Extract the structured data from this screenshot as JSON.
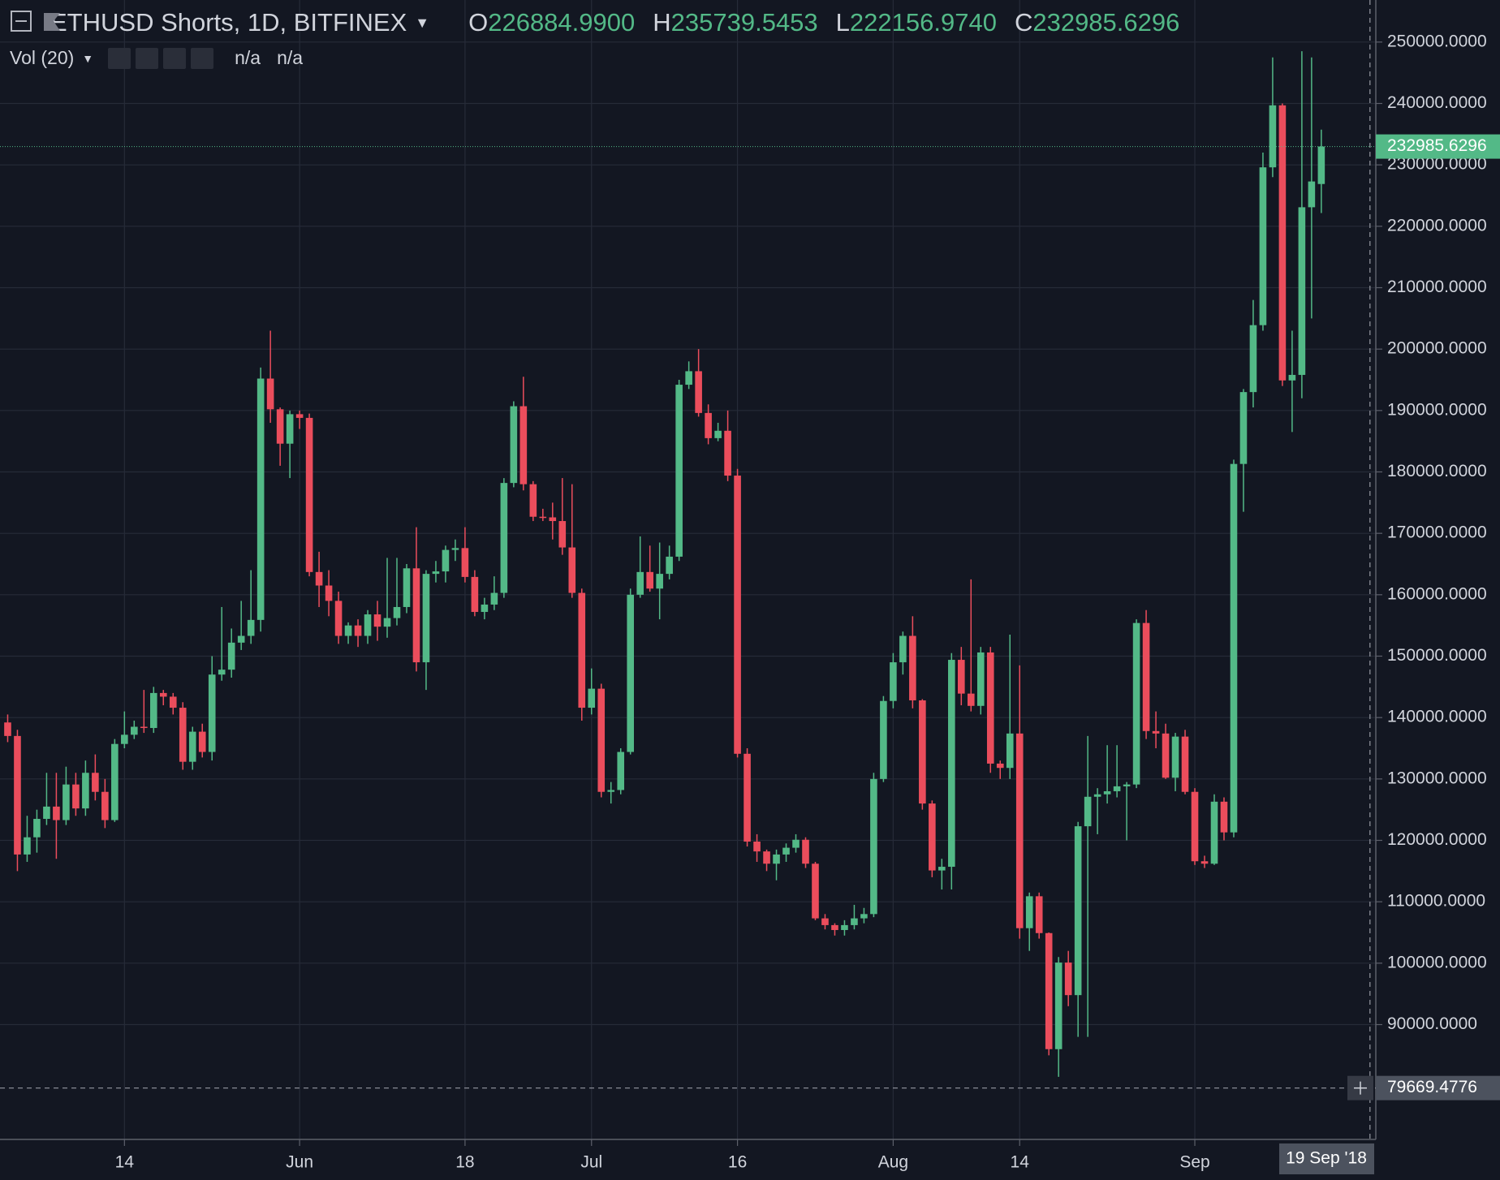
{
  "chart_data": {
    "type": "candlestick",
    "title": "ETHUSD Shorts, 1D, BITFINEX",
    "header_values": [
      {
        "name": "O",
        "label": "226884.9900"
      },
      {
        "name": "H",
        "label": "235739.5453"
      },
      {
        "name": "L",
        "label": "222156.9740"
      },
      {
        "name": "C",
        "label": "232985.6296"
      }
    ],
    "indicator": "Vol (20)",
    "indicator_values": [
      "n/a",
      "n/a"
    ],
    "up_color": "#53b987",
    "down_color": "#eb4d5c",
    "grid": true,
    "grid_color": "#262b38",
    "xlim": [
      -0.79,
      140.6
    ],
    "xticks": [
      {
        "value": 12,
        "label": "14"
      },
      {
        "value": 30,
        "label": "Jun"
      },
      {
        "value": 47,
        "label": "18"
      },
      {
        "value": 60,
        "label": "Jul"
      },
      {
        "value": 75,
        "label": "16"
      },
      {
        "value": 91,
        "label": "Aug"
      },
      {
        "value": 104,
        "label": "14"
      },
      {
        "value": 122,
        "label": "Sep"
      }
    ],
    "ylim": [
      71300,
      256850
    ],
    "yticks": [
      {
        "value": 90000,
        "label": "90000.0000"
      },
      {
        "value": 100000,
        "label": "100000.0000"
      },
      {
        "value": 110000,
        "label": "110000.0000"
      },
      {
        "value": 120000,
        "label": "120000.0000"
      },
      {
        "value": 130000,
        "label": "130000.0000"
      },
      {
        "value": 140000,
        "label": "140000.0000"
      },
      {
        "value": 150000,
        "label": "150000.0000"
      },
      {
        "value": 160000,
        "label": "160000.0000"
      },
      {
        "value": 170000,
        "label": "170000.0000"
      },
      {
        "value": 180000,
        "label": "180000.0000"
      },
      {
        "value": 190000,
        "label": "190000.0000"
      },
      {
        "value": 200000,
        "label": "200000.0000"
      },
      {
        "value": 210000,
        "label": "210000.0000"
      },
      {
        "value": 220000,
        "label": "220000.0000"
      },
      {
        "value": 230000,
        "label": "230000.0000"
      },
      {
        "value": 240000,
        "label": "240000.0000"
      },
      {
        "value": 250000,
        "label": "250000.0000"
      }
    ],
    "open": [
      139200,
      137000,
      117700,
      120500,
      123500,
      125500,
      123300,
      129100,
      125200,
      131000,
      127900,
      123300,
      135700,
      137200,
      138500,
      138300,
      144000,
      143400,
      141600,
      132800,
      137700,
      134400,
      147000,
      147800,
      152200,
      153300,
      155900,
      195200,
      190200,
      184600,
      189400,
      188800,
      163700,
      161500,
      159000,
      153300,
      155000,
      153300,
      156800,
      154800,
      156200,
      158000,
      164300,
      149000,
      163400,
      163800,
      167300,
      167600,
      162900,
      157200,
      158400,
      160300,
      178200,
      190700,
      178000,
      172700,
      172600,
      172000,
      167700,
      160300,
      141600,
      144700,
      127900,
      128200,
      134400,
      160000,
      163700,
      161000,
      163400,
      166200,
      194200,
      196400,
      189600,
      185500,
      186700,
      179400,
      134100,
      119800,
      118200,
      116200,
      117700,
      118800,
      120100,
      116200,
      107300,
      106200,
      105400,
      106200,
      107300,
      108000,
      130000,
      142700,
      149000,
      153300,
      142800,
      126000,
      115100,
      115700,
      149400,
      143900,
      141900,
      150600,
      132500,
      131800,
      137400,
      105700,
      110900,
      104900,
      86000,
      100100,
      94800,
      122300,
      127100,
      127500,
      128000,
      128800,
      129100,
      155400,
      137800,
      137400,
      130200,
      136900,
      127900,
      116600,
      116200,
      126300,
      121300,
      181300,
      193000,
      203900,
      229600,
      239700,
      194900,
      195800,
      223100,
      226884.99
    ],
    "high": [
      140500,
      138000,
      124000,
      125000,
      131000,
      131000,
      132000,
      131000,
      133000,
      134000,
      130000,
      136500,
      141000,
      139500,
      144500,
      145000,
      144500,
      144000,
      142500,
      138500,
      139000,
      150000,
      158000,
      154500,
      159000,
      164000,
      197000,
      203000,
      190500,
      190000,
      190000,
      189500,
      167000,
      164000,
      160500,
      155500,
      156000,
      157500,
      159000,
      166000,
      166000,
      165000,
      171000,
      164000,
      165500,
      168000,
      169000,
      171000,
      164000,
      159500,
      163000,
      179000,
      191500,
      195500,
      178500,
      174000,
      175000,
      179000,
      178000,
      161000,
      148000,
      145500,
      129500,
      135000,
      161000,
      169500,
      168000,
      168500,
      168000,
      195000,
      198000,
      200000,
      191000,
      188000,
      190000,
      180500,
      135000,
      121000,
      118500,
      118500,
      119500,
      121000,
      120500,
      116500,
      108000,
      106500,
      107000,
      109500,
      109000,
      131000,
      143500,
      150500,
      154000,
      156500,
      143000,
      126500,
      117000,
      150500,
      151500,
      162500,
      151500,
      151500,
      133000,
      153500,
      148500,
      111500,
      111500,
      105000,
      101000,
      102000,
      123000,
      137000,
      128500,
      135500,
      135500,
      129500,
      156000,
      157500,
      141000,
      139000,
      137500,
      138000,
      128500,
      117500,
      127500,
      127000,
      182000,
      193500,
      208000,
      232000,
      247500,
      240000,
      203000,
      248500,
      247500,
      235739.5453
    ],
    "low": [
      136000,
      115000,
      116500,
      118000,
      122500,
      117000,
      122500,
      124000,
      124000,
      126500,
      122000,
      123000,
      135000,
      136500,
      137500,
      137500,
      142000,
      140500,
      131500,
      131500,
      133500,
      133000,
      146000,
      146500,
      151000,
      152000,
      154000,
      188000,
      181000,
      179000,
      187000,
      163000,
      158000,
      156500,
      152000,
      152000,
      151500,
      152000,
      152500,
      153000,
      155000,
      157000,
      147500,
      144500,
      162000,
      162000,
      165500,
      162000,
      156500,
      156000,
      157500,
      159500,
      177500,
      177000,
      172000,
      172000,
      169000,
      166500,
      159500,
      139500,
      140500,
      127000,
      126000,
      127500,
      134000,
      159500,
      160500,
      156000,
      162500,
      165500,
      193500,
      189000,
      184500,
      185000,
      178500,
      133500,
      119000,
      116500,
      115000,
      113500,
      116500,
      118000,
      115500,
      107000,
      105500,
      104500,
      104500,
      105500,
      106500,
      107500,
      129500,
      141500,
      147000,
      141500,
      125000,
      114000,
      112000,
      112000,
      142000,
      141000,
      140500,
      131000,
      130000,
      130000,
      104000,
      102000,
      104000,
      85000,
      81500,
      93000,
      88000,
      88000,
      121000,
      126000,
      127000,
      120000,
      128500,
      136500,
      135000,
      130000,
      128000,
      127500,
      116000,
      115500,
      116000,
      120000,
      120500,
      173500,
      190500,
      203000,
      228000,
      194000,
      186500,
      192000,
      205000,
      222156.974
    ],
    "close": [
      137000,
      117700,
      120500,
      123500,
      125500,
      123300,
      129100,
      125200,
      131000,
      127900,
      123300,
      135700,
      137200,
      138500,
      138300,
      144000,
      143400,
      141600,
      132800,
      137700,
      134400,
      147000,
      147800,
      152200,
      153300,
      155900,
      195200,
      190200,
      184600,
      189400,
      188800,
      163700,
      161500,
      159000,
      153300,
      155000,
      153300,
      156800,
      154800,
      156200,
      158000,
      164300,
      149000,
      163400,
      163800,
      167300,
      167600,
      162900,
      157200,
      158400,
      160300,
      178200,
      190700,
      178000,
      172700,
      172600,
      172000,
      167700,
      160300,
      141600,
      144700,
      127900,
      128200,
      134400,
      160000,
      163700,
      161000,
      163400,
      166200,
      194200,
      196400,
      189600,
      185500,
      186700,
      179400,
      134100,
      119800,
      118200,
      116200,
      117700,
      118800,
      120100,
      116200,
      107300,
      106200,
      105400,
      106200,
      107300,
      108000,
      130000,
      142700,
      149000,
      153300,
      142800,
      126000,
      115100,
      115700,
      149400,
      143900,
      141900,
      150600,
      132500,
      131800,
      137400,
      105700,
      110900,
      104900,
      86000,
      100100,
      94800,
      122300,
      127100,
      127500,
      128000,
      128800,
      129100,
      155400,
      137800,
      137400,
      130200,
      136900,
      127900,
      116600,
      116200,
      126300,
      121300,
      181300,
      193000,
      203900,
      229600,
      239700,
      194900,
      195800,
      223100,
      227300,
      232985.6296
    ],
    "crosshair": {
      "x": 140,
      "x_label": "19 Sep '18",
      "y": 79669.4776
    }
  }
}
